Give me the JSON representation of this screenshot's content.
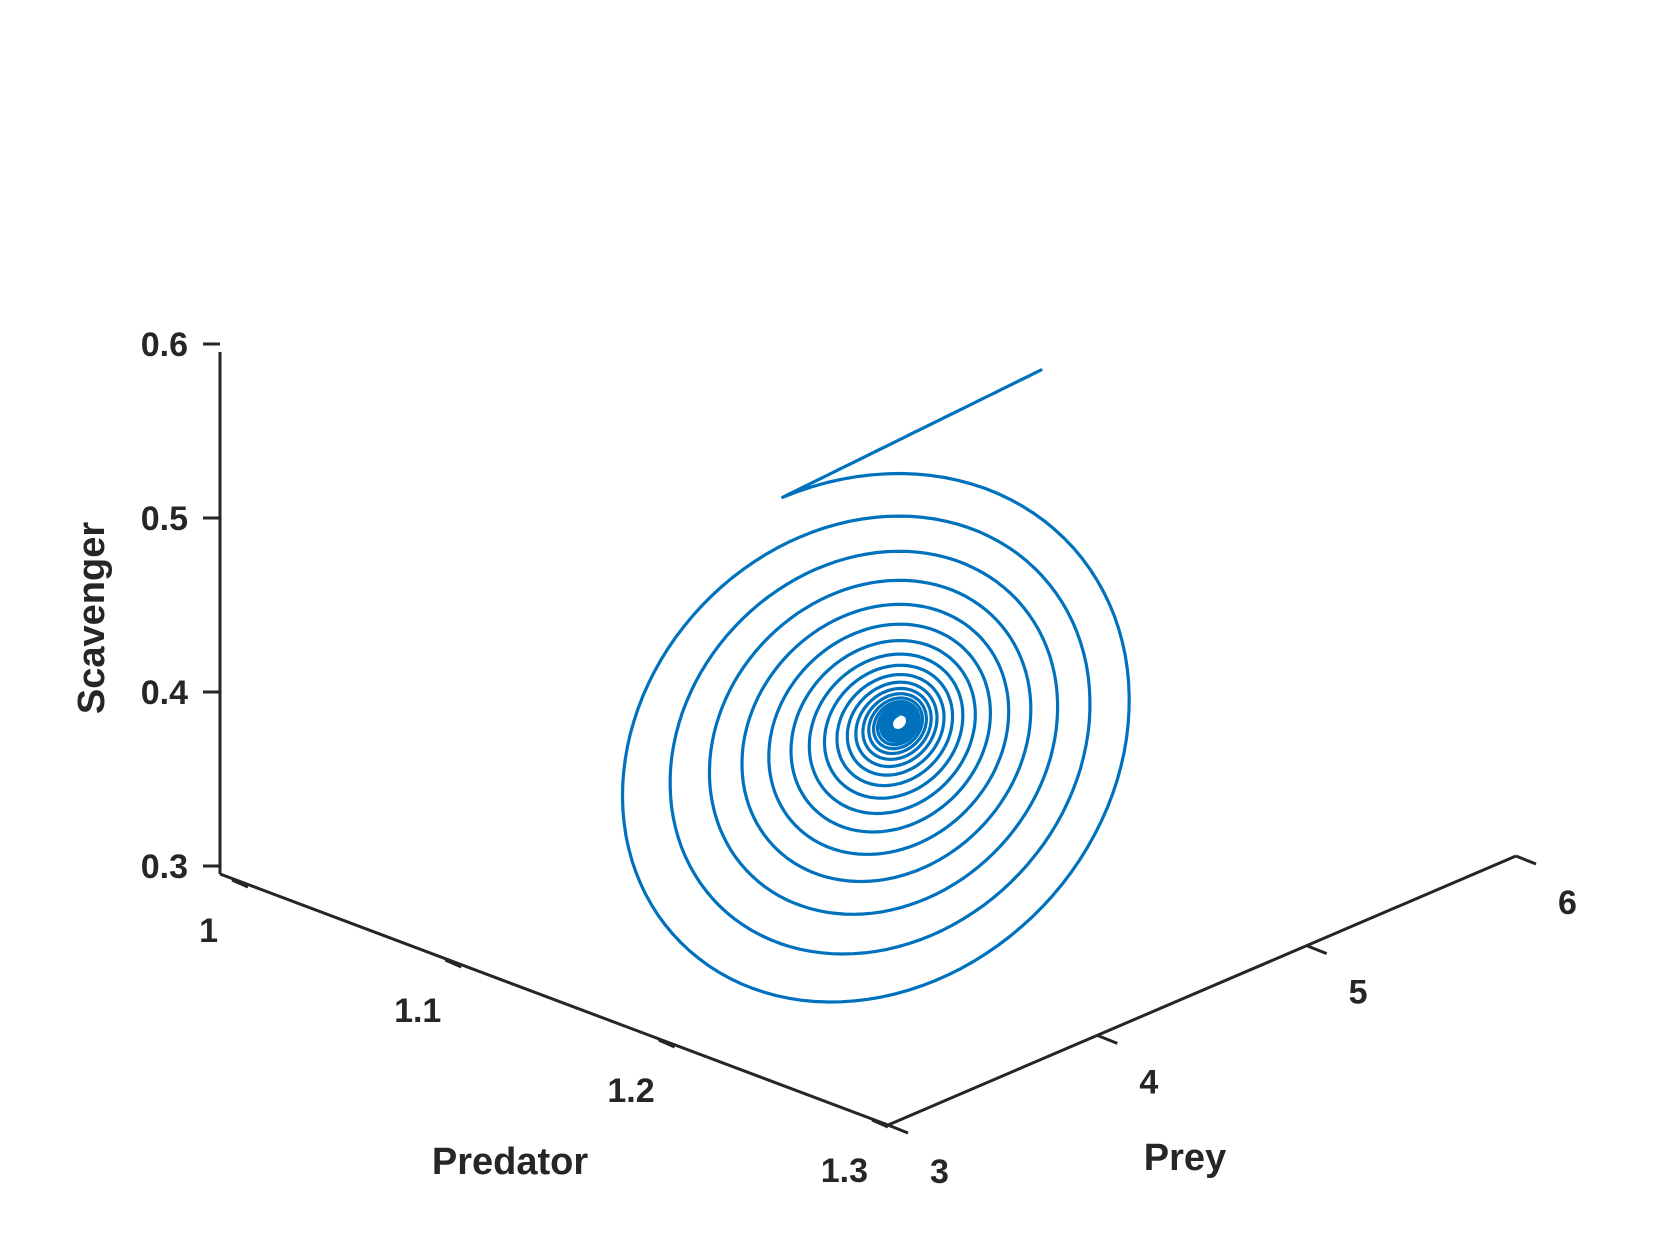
{
  "chart_data": {
    "type": "line3d",
    "title": "",
    "axes": {
      "x": {
        "label": "Predator",
        "lim": [
          1,
          1.3
        ],
        "ticks": [
          "1",
          "1.1",
          "1.2",
          "1.3"
        ]
      },
      "y": {
        "label": "Prey",
        "lim": [
          3,
          6
        ],
        "ticks": [
          "3",
          "4",
          "5",
          "6"
        ]
      },
      "z": {
        "label": "Scavenger",
        "lim": [
          0.3,
          0.6
        ],
        "ticks": [
          "0.3",
          "0.4",
          "0.5",
          "0.6"
        ]
      }
    },
    "grid": false,
    "box": false,
    "series": [
      {
        "color": "#0072bd",
        "start": {
          "predator": 1.235,
          "prey": 4.95,
          "scavenger": 0.57
        },
        "equilibrium": {
          "predator": 1.12,
          "prey": 4.15,
          "scavenger": 0.38
        }
      }
    ]
  }
}
